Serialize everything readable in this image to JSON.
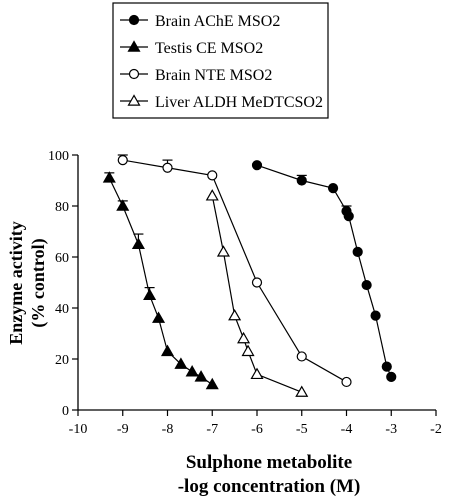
{
  "chart_data": {
    "type": "line",
    "xlabel_line1": "Sulphone metabolite",
    "xlabel_line2": "-log concentration (M)",
    "ylabel_line1": "Enzyme activity",
    "ylabel_line2": "(% control)",
    "xlim": [
      -10,
      -2
    ],
    "ylim": [
      0,
      100
    ],
    "xticks": [
      -10,
      -9,
      -8,
      -7,
      -6,
      -5,
      -4,
      -3,
      -2
    ],
    "yticks": [
      0,
      20,
      40,
      60,
      80,
      100
    ],
    "grid": false,
    "legend_position": "top",
    "series": [
      {
        "name": "Brain AChE MSO2",
        "marker": "circle-filled",
        "x": [
          -6.0,
          -5.0,
          -4.3,
          -4.0,
          -3.95,
          -3.75,
          -3.55,
          -3.35,
          -3.1,
          -3.0
        ],
        "y": [
          96,
          90,
          87,
          78,
          76,
          62,
          49,
          37,
          17,
          13
        ],
        "err": [
          0,
          2,
          0,
          2,
          0,
          0,
          0,
          0,
          0,
          0
        ]
      },
      {
        "name": "Testis CE MSO2",
        "marker": "triangle-filled",
        "x": [
          -9.3,
          -9.0,
          -8.65,
          -8.4,
          -8.2,
          -8.0,
          -7.7,
          -7.45,
          -7.25,
          -7.0
        ],
        "y": [
          91,
          80,
          65,
          45,
          36,
          23,
          18,
          15,
          13,
          10
        ],
        "err": [
          2,
          2,
          4,
          3,
          0,
          0,
          0,
          0,
          0,
          0
        ]
      },
      {
        "name": "Brain NTE MSO2",
        "marker": "circle-open",
        "x": [
          -9.0,
          -8.0,
          -7.0,
          -6.0,
          -5.0,
          -4.0
        ],
        "y": [
          98,
          95,
          92,
          50,
          21,
          11
        ],
        "err": [
          2,
          3,
          0,
          0,
          0,
          0
        ]
      },
      {
        "name": "Liver ALDH MeDTCSO2",
        "marker": "triangle-open",
        "x": [
          -7.0,
          -6.75,
          -6.5,
          -6.3,
          -6.2,
          -6.0,
          -5.0
        ],
        "y": [
          84,
          62,
          37,
          28,
          23,
          14,
          7
        ],
        "err": [
          0,
          0,
          0,
          0,
          0,
          0,
          0
        ]
      }
    ]
  }
}
